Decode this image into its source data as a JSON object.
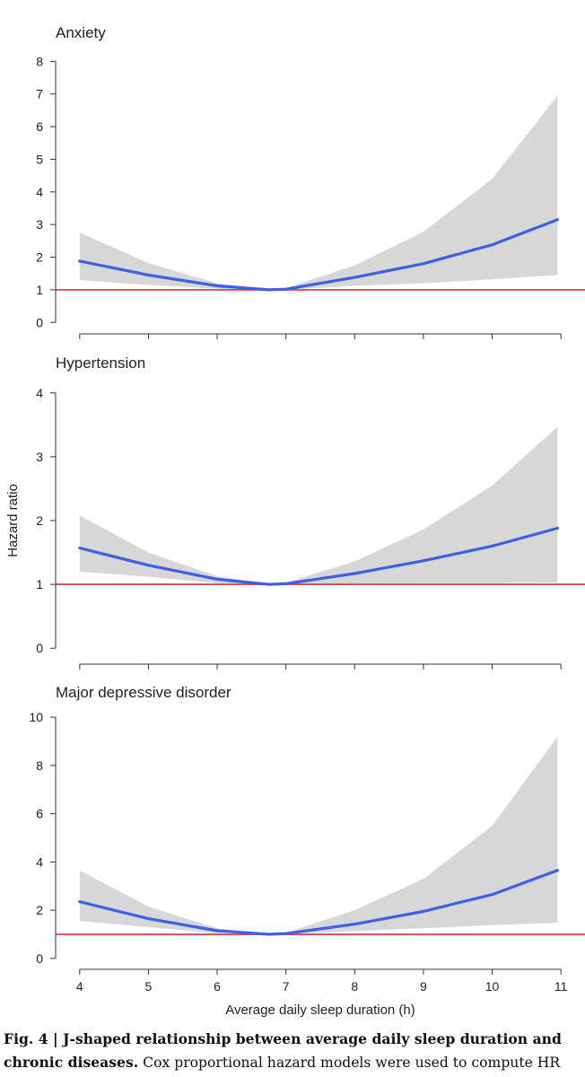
{
  "chart_data": {
    "type": "line",
    "ylabel": "Hazard ratio",
    "xlabel": "Average daily sleep duration (h)",
    "xlim": [
      3.65,
      11.35
    ],
    "x_ticks": [
      4,
      5,
      6,
      7,
      8,
      9,
      10,
      11
    ],
    "reference_line": {
      "y": 1,
      "color": "#e03030"
    },
    "band_color": "#d7d7d7",
    "line_color": "#3e5fe6",
    "panels": [
      {
        "title": "Anxiety",
        "ylim": [
          -0.35,
          8.45
        ],
        "y_ticks": [
          0,
          1,
          2,
          3,
          4,
          5,
          6,
          7,
          8
        ],
        "series": [
          {
            "values": [
              [
                4,
                1.88
              ],
              [
                5,
                1.45
              ],
              [
                6,
                1.12
              ],
              [
                6.75,
                1.0
              ],
              [
                7,
                1.02
              ],
              [
                8,
                1.38
              ],
              [
                9,
                1.8
              ],
              [
                10,
                2.38
              ],
              [
                10.95,
                3.15
              ]
            ]
          }
        ],
        "band": [
          {
            "x": 4,
            "lower": 1.3,
            "upper": 2.75
          },
          {
            "x": 5,
            "lower": 1.15,
            "upper": 1.82
          },
          {
            "x": 6,
            "lower": 1.03,
            "upper": 1.2
          },
          {
            "x": 6.75,
            "lower": 1.0,
            "upper": 1.0
          },
          {
            "x": 7,
            "lower": 1.0,
            "upper": 1.05
          },
          {
            "x": 8,
            "lower": 1.12,
            "upper": 1.75
          },
          {
            "x": 9,
            "lower": 1.2,
            "upper": 2.78
          },
          {
            "x": 10,
            "lower": 1.32,
            "upper": 4.4
          },
          {
            "x": 10.95,
            "lower": 1.45,
            "upper": 6.95
          }
        ]
      },
      {
        "title": "Hypertension",
        "ylim": [
          -0.25,
          4.25
        ],
        "y_ticks": [
          0,
          1,
          2,
          3,
          4
        ],
        "series": [
          {
            "values": [
              [
                4,
                1.57
              ],
              [
                5,
                1.3
              ],
              [
                6,
                1.08
              ],
              [
                6.75,
                1.0
              ],
              [
                7,
                1.01
              ],
              [
                8,
                1.17
              ],
              [
                9,
                1.37
              ],
              [
                10,
                1.6
              ],
              [
                10.95,
                1.88
              ]
            ]
          }
        ],
        "band": [
          {
            "x": 4,
            "lower": 1.2,
            "upper": 2.08
          },
          {
            "x": 5,
            "lower": 1.12,
            "upper": 1.5
          },
          {
            "x": 6,
            "lower": 1.02,
            "upper": 1.13
          },
          {
            "x": 6.75,
            "lower": 1.0,
            "upper": 1.0
          },
          {
            "x": 7,
            "lower": 1.0,
            "upper": 1.03
          },
          {
            "x": 8,
            "lower": 1.01,
            "upper": 1.36
          },
          {
            "x": 9,
            "lower": 1.02,
            "upper": 1.86
          },
          {
            "x": 10,
            "lower": 1.02,
            "upper": 2.55
          },
          {
            "x": 10.95,
            "lower": 1.03,
            "upper": 3.47
          }
        ]
      },
      {
        "title": "Major depressive disorder",
        "ylim": [
          -0.45,
          10.45
        ],
        "y_ticks": [
          0,
          2,
          4,
          6,
          8,
          10
        ],
        "series": [
          {
            "values": [
              [
                4,
                2.35
              ],
              [
                5,
                1.65
              ],
              [
                6,
                1.15
              ],
              [
                6.75,
                1.0
              ],
              [
                7,
                1.03
              ],
              [
                8,
                1.42
              ],
              [
                9,
                1.95
              ],
              [
                10,
                2.65
              ],
              [
                10.95,
                3.65
              ]
            ]
          }
        ],
        "band": [
          {
            "x": 4,
            "lower": 1.55,
            "upper": 3.65
          },
          {
            "x": 5,
            "lower": 1.3,
            "upper": 2.15
          },
          {
            "x": 6,
            "lower": 1.05,
            "upper": 1.25
          },
          {
            "x": 6.75,
            "lower": 1.0,
            "upper": 1.0
          },
          {
            "x": 7,
            "lower": 1.0,
            "upper": 1.06
          },
          {
            "x": 8,
            "lower": 1.13,
            "upper": 2.0
          },
          {
            "x": 9,
            "lower": 1.25,
            "upper": 3.3
          },
          {
            "x": 10,
            "lower": 1.38,
            "upper": 5.5
          },
          {
            "x": 10.95,
            "lower": 1.48,
            "upper": 9.2
          }
        ]
      }
    ]
  },
  "caption": {
    "label": "Fig. 4 | ",
    "title": "J-shaped relationship between average daily sleep duration and chronic diseases.",
    "text": " Cox proportional hazard models were used to compute HR"
  }
}
